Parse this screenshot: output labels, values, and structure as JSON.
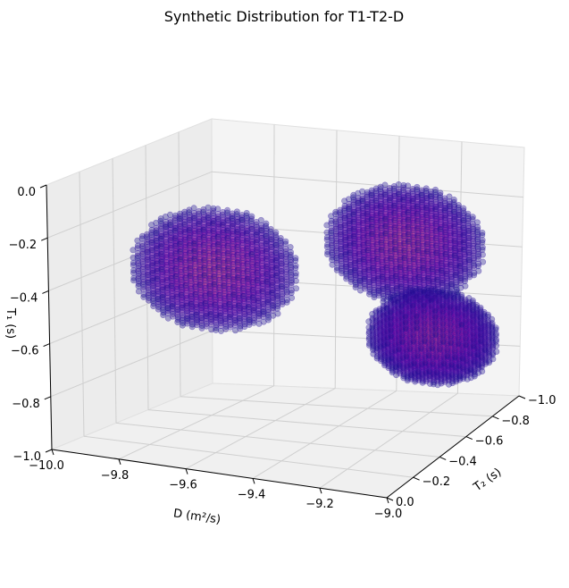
{
  "chart_data": {
    "type": "scatter3d",
    "title": "Synthetic Distribution for T1-T2-D",
    "xlabel": "D (m²/s)",
    "ylabel": "T₂ (s)",
    "zlabel": "T₁ (s)",
    "xlim": [
      -10.0,
      -9.0
    ],
    "ylim": [
      0.0,
      -1.0
    ],
    "zlim": [
      -1.0,
      0.0
    ],
    "x_ticks": [
      "−10.0",
      "−9.8",
      "−9.6",
      "−9.4",
      "−9.2",
      "−9.0"
    ],
    "y_ticks": [
      "0.0",
      "−0.2",
      "−0.4",
      "−0.6",
      "−0.8",
      "−1.0"
    ],
    "z_ticks": [
      "−1.0",
      "−0.8",
      "−0.6",
      "−0.4",
      "−0.2",
      "0.0"
    ],
    "grid": true,
    "colormap": "plasma",
    "colors": {
      "pane": "#f2f2f2",
      "grid": "#cfcfcf",
      "marker_edge": "#3a1fa8"
    },
    "clusters": [
      {
        "name": "",
        "center": [
          -9.72,
          -0.45,
          -0.38
        ],
        "radius": 0.23
      },
      {
        "name": "",
        "center": [
          -9.28,
          -0.72,
          -0.27
        ],
        "radius": 0.22
      },
      {
        "name": "",
        "center": [
          -9.12,
          -0.55,
          -0.55
        ],
        "radius": 0.18
      }
    ]
  }
}
